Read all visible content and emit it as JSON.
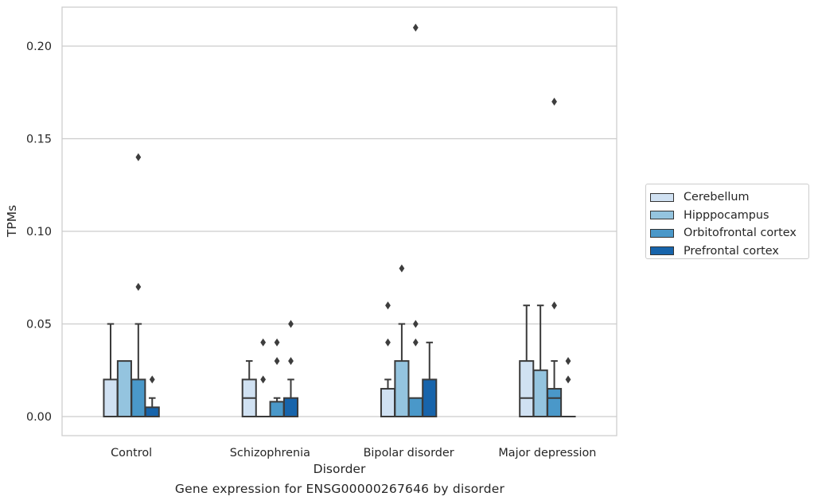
{
  "chart_data": {
    "type": "box",
    "title": "",
    "caption": "Gene expression for ENSG00000267646 by disorder",
    "xlabel": "Disorder",
    "ylabel": "TPMs",
    "categories": [
      "Control",
      "Schizophrenia",
      "Bipolar disorder",
      "Major depression"
    ],
    "ylim": [
      -0.01,
      0.22
    ],
    "yticks": [
      0.0,
      0.05,
      0.1,
      0.15,
      0.2
    ],
    "ytick_labels": [
      "0.00",
      "0.05",
      "0.10",
      "0.15",
      "0.20"
    ],
    "grid": "horizontal",
    "legend_position": "right, outside plot",
    "series": [
      {
        "name": "Cerebellum",
        "color": "#d0e1f2",
        "boxes": [
          {
            "q1": 0,
            "median": 0,
            "q3": 0.02,
            "whisker_low": 0,
            "whisker_high": 0.05,
            "outliers": []
          },
          {
            "q1": 0,
            "median": 0.01,
            "q3": 0.02,
            "whisker_low": 0,
            "whisker_high": 0.03,
            "outliers": []
          },
          {
            "q1": 0,
            "median": 0,
            "q3": 0.015,
            "whisker_low": 0,
            "whisker_high": 0.02,
            "outliers": [
              0.04,
              0.06
            ]
          },
          {
            "q1": 0,
            "median": 0.01,
            "q3": 0.03,
            "whisker_low": 0,
            "whisker_high": 0.06,
            "outliers": []
          }
        ]
      },
      {
        "name": "Hipppocampus",
        "color": "#94c4df",
        "boxes": [
          {
            "q1": 0,
            "median": 0,
            "q3": 0.03,
            "whisker_low": 0,
            "whisker_high": 0.03,
            "outliers": []
          },
          {
            "q1": 0,
            "median": 0,
            "q3": 0,
            "whisker_low": 0,
            "whisker_high": 0,
            "outliers": [
              0.02,
              0.04
            ]
          },
          {
            "q1": 0,
            "median": 0,
            "q3": 0.03,
            "whisker_low": 0,
            "whisker_high": 0.05,
            "outliers": [
              0.08
            ]
          },
          {
            "q1": 0,
            "median": 0,
            "q3": 0.025,
            "whisker_low": 0,
            "whisker_high": 0.06,
            "outliers": []
          }
        ]
      },
      {
        "name": "Orbitofrontal cortex",
        "color": "#4a98c9",
        "boxes": [
          {
            "q1": 0,
            "median": 0,
            "q3": 0.02,
            "whisker_low": 0,
            "whisker_high": 0.05,
            "outliers": [
              0.07,
              0.14
            ]
          },
          {
            "q1": 0,
            "median": 0,
            "q3": 0.008,
            "whisker_low": 0,
            "whisker_high": 0.01,
            "outliers": [
              0.03,
              0.04
            ]
          },
          {
            "q1": 0,
            "median": 0,
            "q3": 0.01,
            "whisker_low": 0,
            "whisker_high": 0.01,
            "outliers": [
              0.04,
              0.05,
              0.21
            ]
          },
          {
            "q1": 0,
            "median": 0.01,
            "q3": 0.015,
            "whisker_low": 0,
            "whisker_high": 0.03,
            "outliers": [
              0.06,
              0.17
            ]
          }
        ]
      },
      {
        "name": "Prefrontal cortex",
        "color": "#1764ab",
        "boxes": [
          {
            "q1": 0,
            "median": 0,
            "q3": 0.005,
            "whisker_low": 0,
            "whisker_high": 0.01,
            "outliers": [
              0.02
            ]
          },
          {
            "q1": 0,
            "median": 0,
            "q3": 0.01,
            "whisker_low": 0,
            "whisker_high": 0.02,
            "outliers": [
              0.03,
              0.05
            ]
          },
          {
            "q1": 0,
            "median": 0,
            "q3": 0.02,
            "whisker_low": 0,
            "whisker_high": 0.04,
            "outliers": []
          },
          {
            "q1": 0,
            "median": 0,
            "q3": 0,
            "whisker_low": 0,
            "whisker_high": 0,
            "outliers": [
              0.02,
              0.03
            ]
          }
        ]
      }
    ]
  }
}
